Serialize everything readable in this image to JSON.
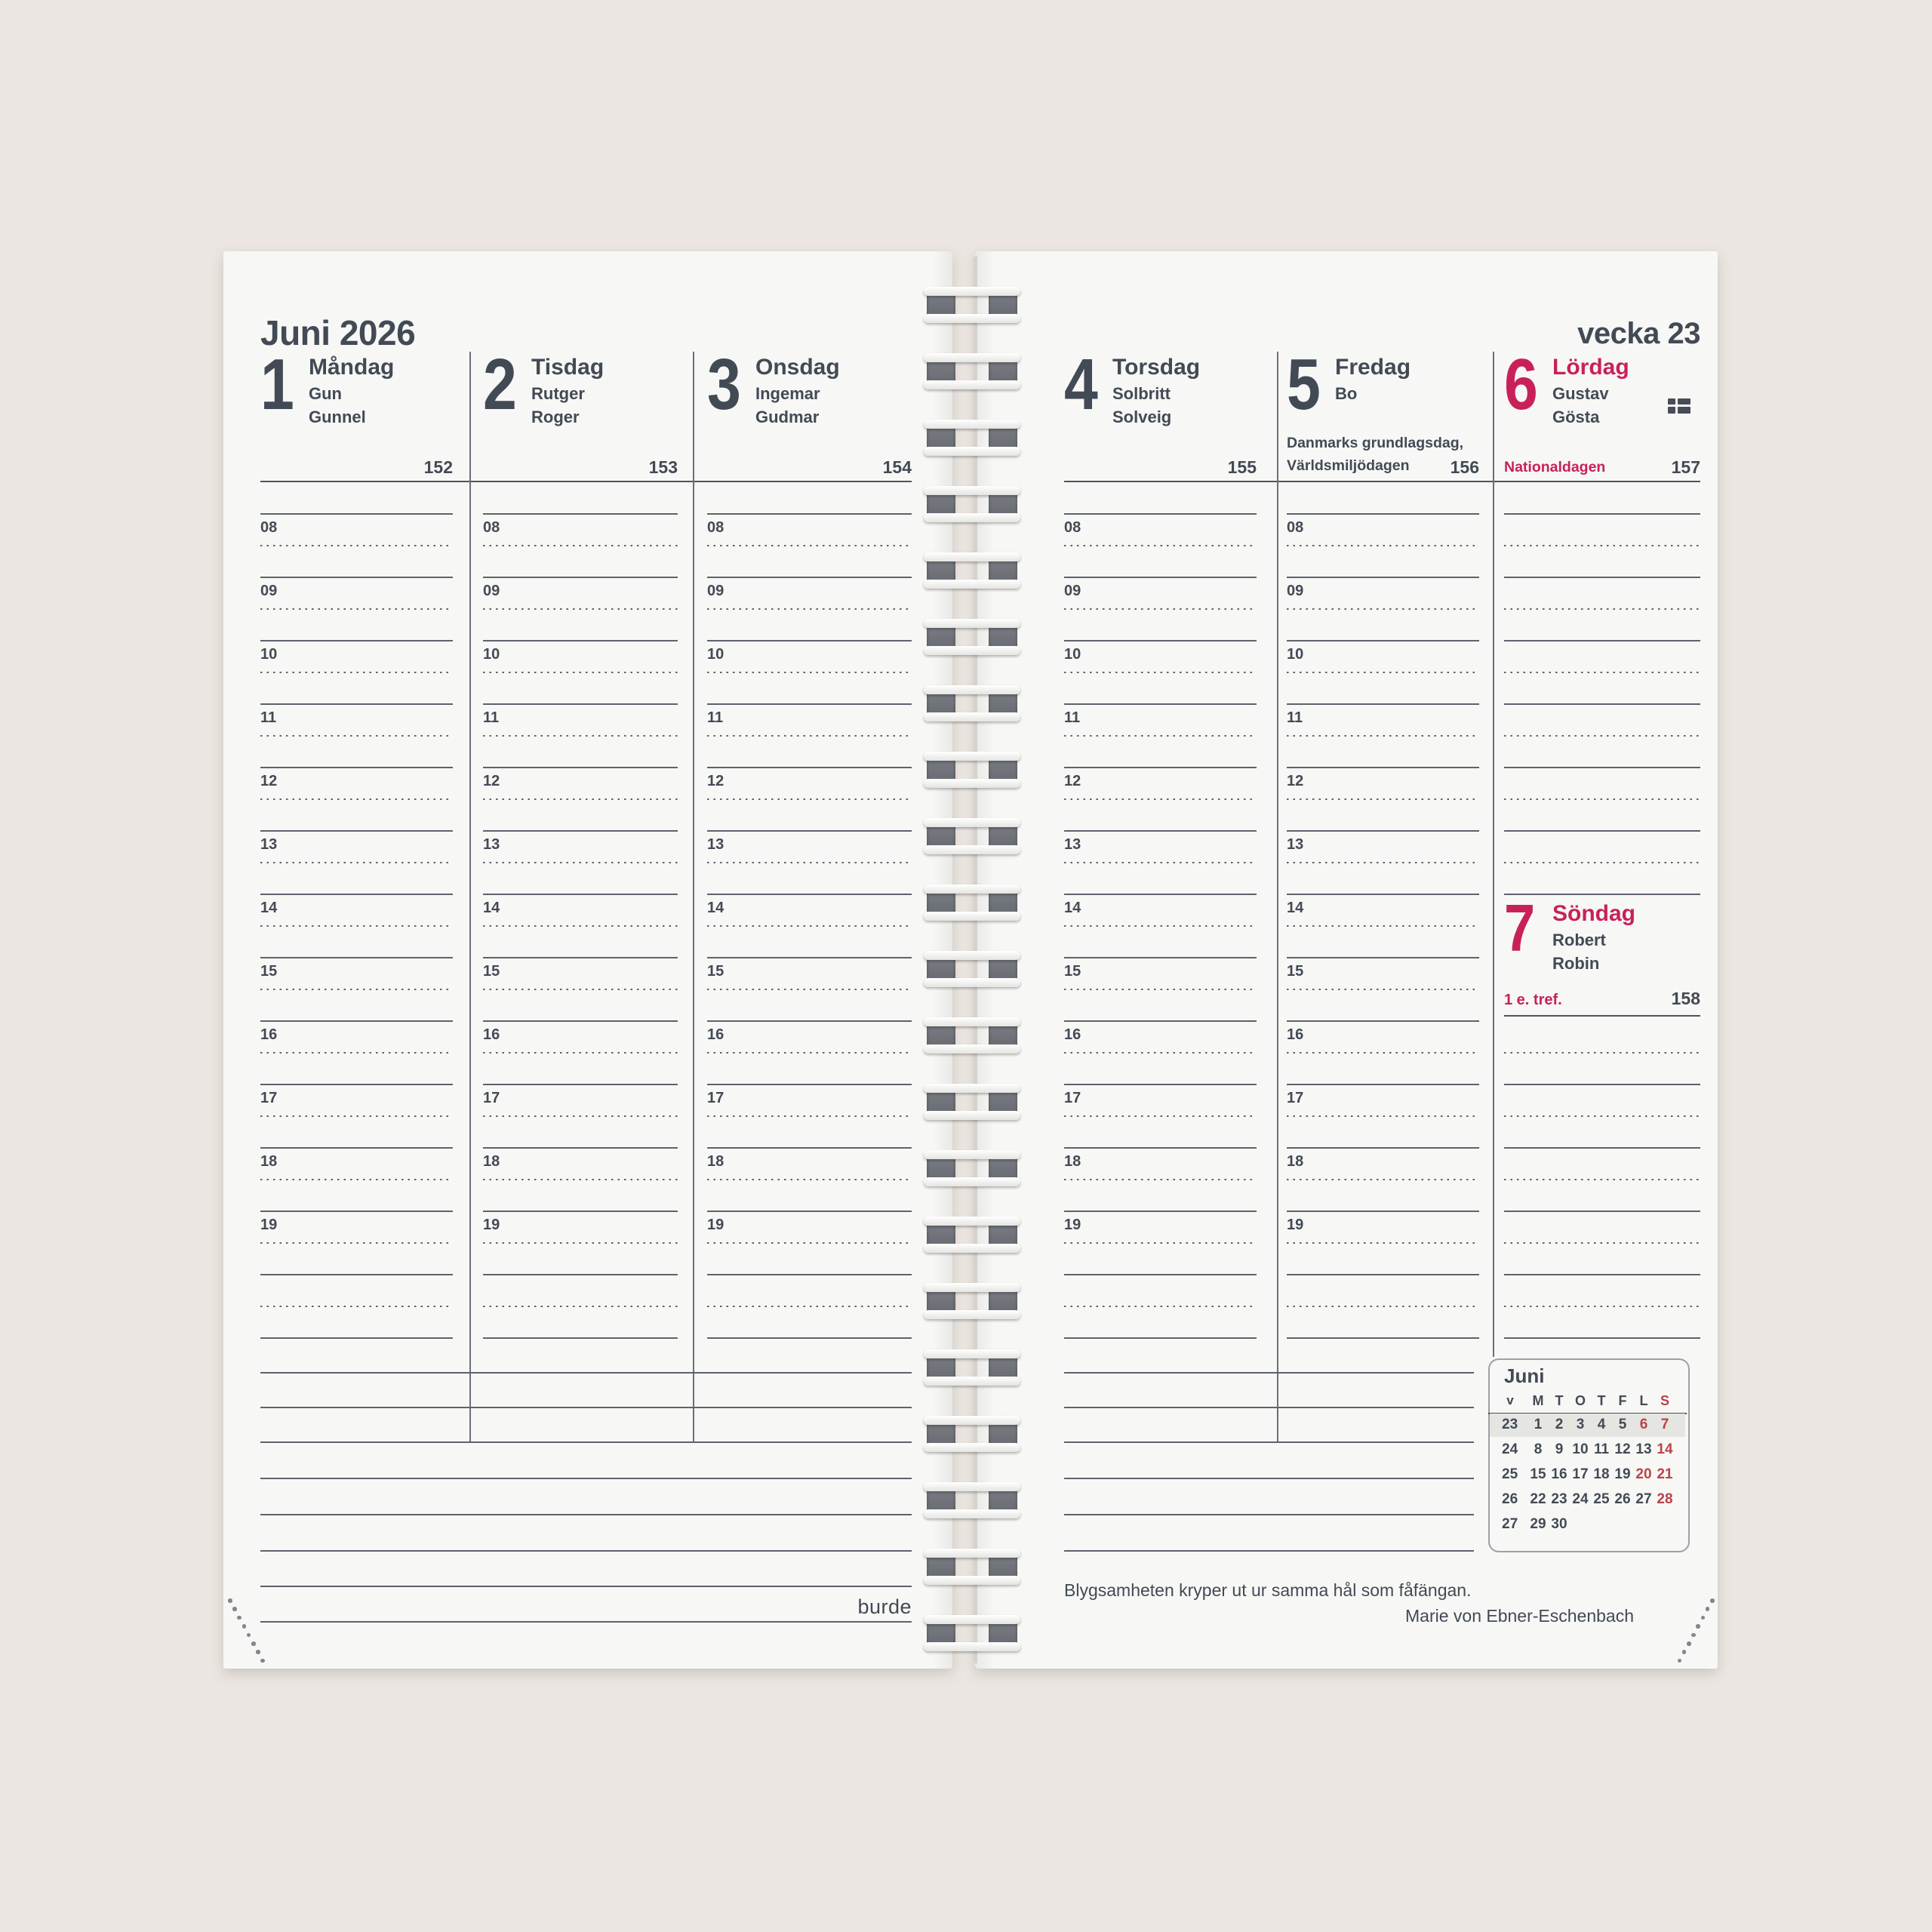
{
  "month_title": "Juni 2026",
  "week_label": "vecka 23",
  "brand": "burde",
  "hours": [
    "08",
    "09",
    "10",
    "11",
    "12",
    "13",
    "14",
    "15",
    "16",
    "17",
    "18",
    "19"
  ],
  "days": [
    {
      "number": "1",
      "name": "Måndag",
      "name_days": [
        "Gun",
        "Gunnel"
      ],
      "day_of_year": "152",
      "holiday_lines": [],
      "red": false,
      "flag": false
    },
    {
      "number": "2",
      "name": "Tisdag",
      "name_days": [
        "Rutger",
        "Roger"
      ],
      "day_of_year": "153",
      "holiday_lines": [],
      "red": false,
      "flag": false
    },
    {
      "number": "3",
      "name": "Onsdag",
      "name_days": [
        "Ingemar",
        "Gudmar"
      ],
      "day_of_year": "154",
      "holiday_lines": [],
      "red": false,
      "flag": false
    },
    {
      "number": "4",
      "name": "Torsdag",
      "name_days": [
        "Solbritt",
        "Solveig"
      ],
      "day_of_year": "155",
      "holiday_lines": [],
      "red": false,
      "flag": false
    },
    {
      "number": "5",
      "name": "Fredag",
      "name_days": [
        "Bo"
      ],
      "day_of_year": "156",
      "holiday_lines": [
        "Danmarks grundlagsdag,",
        "Världsmiljödagen"
      ],
      "red": false,
      "flag": false
    },
    {
      "number": "6",
      "name": "Lördag",
      "name_days": [
        "Gustav",
        "Gösta"
      ],
      "day_of_year": "157",
      "holiday_lines": [
        "Nationaldagen"
      ],
      "red": true,
      "flag": true
    },
    {
      "number": "7",
      "name": "Söndag",
      "name_days": [
        "Robert",
        "Robin"
      ],
      "day_of_year": "158",
      "holiday_lines": [
        "1 e. tref."
      ],
      "red": true,
      "flag": false
    }
  ],
  "mini_calendar": {
    "title": "Juni",
    "headers": [
      "v",
      "M",
      "T",
      "O",
      "T",
      "F",
      "L",
      "S"
    ],
    "red_header_indices": [
      7
    ],
    "weeks": [
      {
        "week": "23",
        "days": [
          "1",
          "2",
          "3",
          "4",
          "5",
          "6",
          "7"
        ],
        "red_days": [
          "6",
          "7"
        ],
        "highlighted": true
      },
      {
        "week": "24",
        "days": [
          "8",
          "9",
          "10",
          "11",
          "12",
          "13",
          "14"
        ],
        "red_days": [
          "14"
        ],
        "highlighted": false
      },
      {
        "week": "25",
        "days": [
          "15",
          "16",
          "17",
          "18",
          "19",
          "20",
          "21"
        ],
        "red_days": [
          "20",
          "21"
        ],
        "highlighted": false
      },
      {
        "week": "26",
        "days": [
          "22",
          "23",
          "24",
          "25",
          "26",
          "27",
          "28"
        ],
        "red_days": [
          "28"
        ],
        "highlighted": false
      },
      {
        "week": "27",
        "days": [
          "29",
          "30"
        ],
        "red_days": [],
        "highlighted": false
      }
    ]
  },
  "quote": {
    "text": "Blygsamheten kryper ut ur samma hål som fåfängan.",
    "author": "Marie von Ebner-Eschenbach"
  },
  "colors": {
    "ink": "#424a55",
    "accent_red": "#c8215a",
    "mini_red": "#b94348",
    "paper": "#f7f7f5",
    "background": "#ebe6e1"
  },
  "icons": {
    "flag": "swedish-flag-icon"
  }
}
